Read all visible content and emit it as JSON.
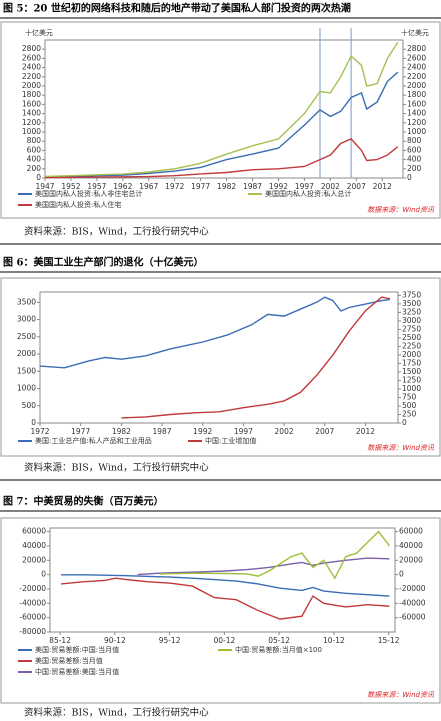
{
  "figure_titles": [
    "图 5：20 世纪初的网络科技和随后的地产带动了美国私人部门投资的两次热潮",
    "图 6：美国工业生产部门的退化（十亿美元）",
    "图 7：中美贸易的失衡（百万美元）"
  ],
  "notes": [
    "资料来源：BIS，Wind，工行投行研究中心",
    "资料来源：BIS，Wind，工行投行研究中心",
    "资料来源：BIS，Wind，工行投行研究中心"
  ],
  "chart_data": [
    {
      "type": "line",
      "y_unit": "十亿美元",
      "y2_unit": "十亿美元",
      "source": "数据来源：Wind资讯",
      "x": [
        1947,
        1952,
        1957,
        1962,
        1967,
        1972,
        1977,
        1982,
        1987,
        1992,
        1997,
        2000,
        2002,
        2004,
        2006,
        2008,
        2009,
        2011,
        2013,
        2015
      ],
      "xlim": [
        1947,
        2016
      ],
      "xticks": [
        1947,
        1952,
        1957,
        1962,
        1967,
        1972,
        1977,
        1982,
        1987,
        1992,
        1997,
        2002,
        2007,
        2012
      ],
      "ylim": [
        0,
        3000
      ],
      "yticks": [
        0,
        200,
        400,
        600,
        800,
        1000,
        1200,
        1400,
        1600,
        1800,
        2000,
        2200,
        2400,
        2600,
        2800
      ],
      "y2lim": [
        0,
        3000
      ],
      "y2ticks": [
        0,
        200,
        400,
        600,
        800,
        1000,
        1200,
        1400,
        1600,
        1800,
        2000,
        2200,
        2400,
        2600,
        2800
      ],
      "vlines": [
        2000,
        2006
      ],
      "vline_color": "#8fa9d0",
      "series": [
        {
          "name": "美国国内私人投资:私人非住宅总计",
          "color": "#3a6db5",
          "values": [
            25,
            35,
            50,
            60,
            100,
            150,
            230,
            400,
            520,
            650,
            1150,
            1480,
            1340,
            1450,
            1750,
            1850,
            1500,
            1650,
            2100,
            2300
          ]
        },
        {
          "name": "美国国内私人投资:私人住宅",
          "color": "#c0393b",
          "values": [
            10,
            15,
            20,
            25,
            30,
            50,
            90,
            120,
            180,
            200,
            250,
            400,
            500,
            750,
            850,
            600,
            380,
            400,
            500,
            680
          ]
        },
        {
          "name": "美国国内私人投资:私人总计",
          "color": "#a7bf4f",
          "values": [
            35,
            50,
            70,
            85,
            130,
            200,
            320,
            520,
            700,
            850,
            1400,
            1880,
            1850,
            2200,
            2650,
            2450,
            2000,
            2050,
            2600,
            2950
          ]
        }
      ]
    },
    {
      "type": "line",
      "source": "数据来源：Wind资讯",
      "xlim": [
        1972,
        2016
      ],
      "xticks": [
        1972,
        1977,
        1982,
        1987,
        1992,
        1997,
        2002,
        2007,
        2012
      ],
      "ylim": [
        0,
        3800
      ],
      "yticks": [
        0,
        500,
        1000,
        1500,
        2000,
        2500,
        3000,
        3500
      ],
      "y2lim": [
        0,
        3850
      ],
      "y2ticks": [
        0,
        250,
        500,
        750,
        1000,
        1250,
        1500,
        1750,
        2000,
        2250,
        2500,
        2750,
        3000,
        3250,
        3500,
        3750
      ],
      "series": [
        {
          "name": "美国:工业总产值:私人产品和工业用品",
          "color": "#3a6db5",
          "x": [
            1972,
            1975,
            1978,
            1980,
            1982,
            1985,
            1988,
            1990,
            1992,
            1995,
            1998,
            2000,
            2002,
            2004,
            2006,
            2007,
            2008,
            2009,
            2010,
            2012,
            2014,
            2015
          ],
          "values": [
            1650,
            1600,
            1800,
            1900,
            1850,
            1950,
            2150,
            2250,
            2350,
            2550,
            2850,
            3150,
            3100,
            3300,
            3500,
            3650,
            3550,
            3250,
            3350,
            3450,
            3550,
            3580
          ]
        },
        {
          "name": "中国:工业增加值",
          "color": "#c0393b",
          "axis": "y2",
          "x": [
            1982,
            1985,
            1988,
            1991,
            1994,
            1997,
            2000,
            2002,
            2004,
            2006,
            2008,
            2010,
            2012,
            2014,
            2015
          ],
          "values": [
            150,
            180,
            250,
            300,
            330,
            450,
            550,
            650,
            900,
            1400,
            2000,
            2700,
            3300,
            3700,
            3650
          ]
        }
      ]
    },
    {
      "type": "line",
      "source": "数据来源：Wind资讯",
      "xlim": [
        1985,
        2016.5
      ],
      "xticks": [
        {
          "value": 1985.92,
          "label": "85-12"
        },
        {
          "value": 1990.92,
          "label": "90-12"
        },
        {
          "value": 1995.92,
          "label": "95-12"
        },
        {
          "value": 2000.92,
          "label": "00-12"
        },
        {
          "value": 2005.92,
          "label": "05-12"
        },
        {
          "value": 2010.92,
          "label": "10-12"
        },
        {
          "value": 2015.92,
          "label": "15-12"
        }
      ],
      "ylim": [
        -80000,
        65000
      ],
      "yticks": [
        -80000,
        -60000,
        -40000,
        -20000,
        0,
        20000,
        40000,
        60000
      ],
      "y2lim": [
        -80000,
        65000
      ],
      "y2ticks": [
        -60000,
        -40000,
        -20000,
        0,
        20000,
        40000,
        60000
      ],
      "series": [
        {
          "name": "美国:贸易差额:中国:当月值",
          "color": "#3a6db5",
          "x": [
            1986,
            1988,
            1990,
            1992,
            1994,
            1996,
            1998,
            2000,
            2002,
            2004,
            2006,
            2008,
            2009,
            2010,
            2012,
            2014,
            2016
          ],
          "values": [
            -200,
            -300,
            -800,
            -1500,
            -2500,
            -3500,
            -5000,
            -7000,
            -9000,
            -13000,
            -19000,
            -22000,
            -18000,
            -23000,
            -26000,
            -28000,
            -30000
          ]
        },
        {
          "name": "美国:贸易差额:当月值",
          "color": "#c0393b",
          "x": [
            1986,
            1988,
            1990,
            1991,
            1992,
            1994,
            1996,
            1998,
            2000,
            2002,
            2004,
            2006,
            2008,
            2009,
            2010,
            2012,
            2014,
            2016
          ],
          "values": [
            -13000,
            -10000,
            -8000,
            -5000,
            -7000,
            -10000,
            -12000,
            -16000,
            -32000,
            -35000,
            -50000,
            -62000,
            -58000,
            -30000,
            -40000,
            -45000,
            -42000,
            -44000
          ]
        },
        {
          "name": "中国:贸易差额:美国:当月值",
          "color": "#7b5fa8",
          "axis": "y2",
          "x": [
            1993,
            1995,
            1997,
            1999,
            2001,
            2003,
            2005,
            2007,
            2008,
            2009,
            2010,
            2012,
            2014,
            2016
          ],
          "values": [
            0,
            2000,
            3000,
            4000,
            5000,
            7000,
            10000,
            15000,
            17000,
            13000,
            16000,
            20000,
            23000,
            22000
          ]
        },
        {
          "name": "中国:贸易差额:当月值×100",
          "color": "#9cbf3b",
          "axis": "y2",
          "x": [
            1995,
            1998,
            2001,
            2003,
            2004,
            2005,
            2006,
            2007,
            2008,
            2009,
            2010,
            2011,
            2012,
            2013,
            2014,
            2015,
            2016
          ],
          "values": [
            1000,
            2000,
            1500,
            1000,
            -2000,
            5000,
            15000,
            25000,
            30000,
            10000,
            20000,
            -5000,
            25000,
            30000,
            45000,
            60000,
            40000
          ]
        }
      ]
    }
  ]
}
